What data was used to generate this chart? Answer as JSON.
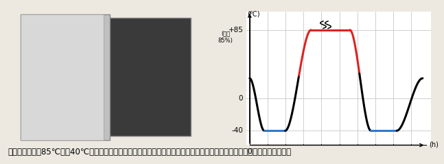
{
  "title_yaxis": "(℃)",
  "title_xaxis": "(h)",
  "y_labels": [
    "+85",
    "0",
    "-40"
  ],
  "y_values": [
    85,
    0,
    -40
  ],
  "x_label_0": "0",
  "side_label_line1": "(温度",
  "side_label_line2": "85%)",
  "ylim": [
    -58,
    108
  ],
  "xlim": [
    -0.2,
    11.2
  ],
  "bg_color": "#ede9e0",
  "chart_bg": "#ffffff",
  "grid_color": "#c8c8c8",
  "line_color_black": "#000000",
  "line_color_red": "#dd2222",
  "line_color_blue": "#3377cc",
  "caption": "【この設備で、85℃～－40℃の温度変化を繰り返すことによって、激しい寒暖の差に対する耗久性をテストしています。】",
  "caption_fontsize": 8.5,
  "img_placeholder_color": "#a0a0a0",
  "curve_lw": 2.2
}
